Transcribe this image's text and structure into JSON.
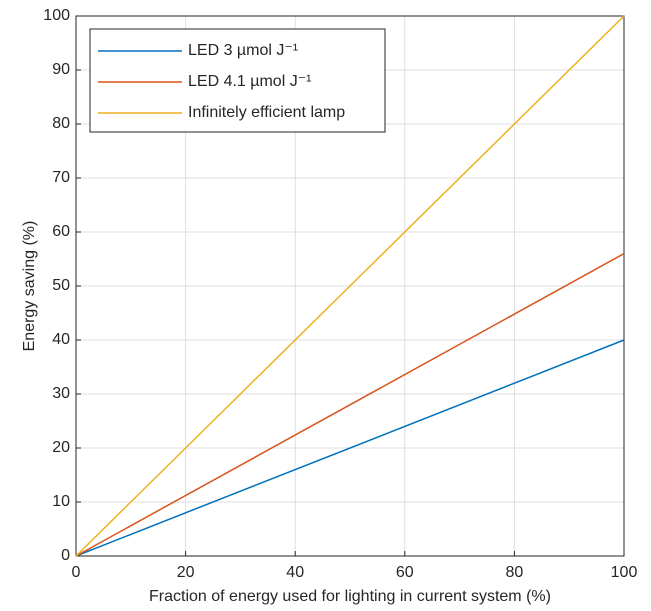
{
  "chart_data": {
    "type": "line",
    "x_label": "Fraction of energy used for lighting in current system (%)",
    "y_label": "Energy saving (%)",
    "x": [
      0,
      100
    ],
    "series": [
      {
        "name": "LED 3 µmol J⁻¹",
        "color": "#0072bd",
        "values": [
          0,
          40
        ]
      },
      {
        "name": "LED 4.1 µmol J⁻¹",
        "color": "#d95319",
        "values": [
          0,
          56
        ]
      },
      {
        "name": "Infinitely efficient lamp",
        "color": "#edb120",
        "values": [
          0,
          100
        ]
      }
    ],
    "xlim": [
      0,
      100
    ],
    "xticks": [
      0,
      20,
      40,
      60,
      80,
      100
    ],
    "ylim": [
      0,
      100
    ],
    "yticks": [
      0,
      10,
      20,
      30,
      40,
      50,
      60,
      70,
      80,
      90,
      100
    ],
    "grid": true,
    "legend": "northwest"
  }
}
